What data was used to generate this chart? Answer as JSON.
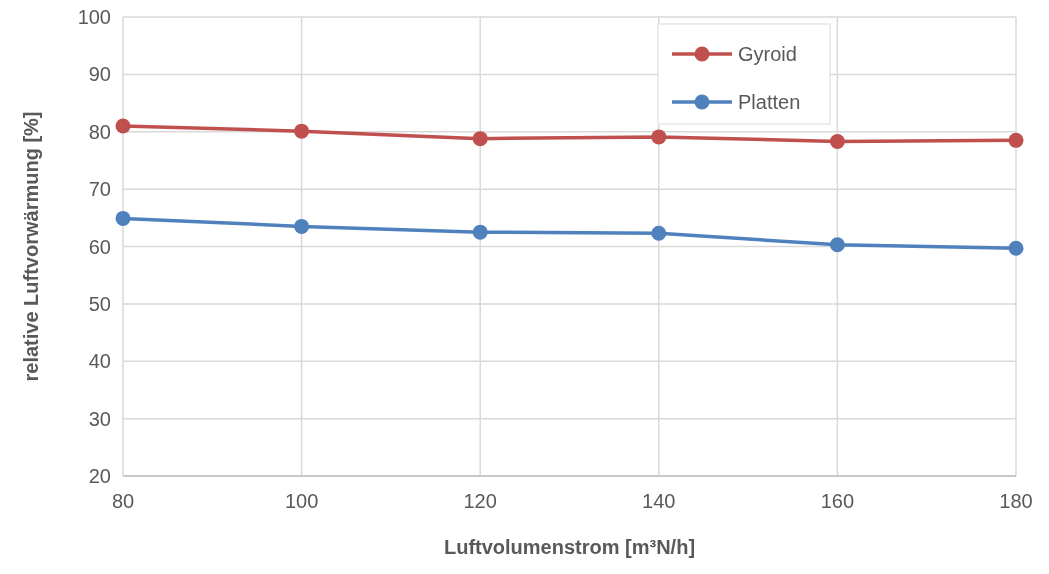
{
  "chart_data": {
    "type": "line",
    "xlabel": "Luftvolumenstrom [m³N/h]",
    "ylabel": "relative Luftvorwärmung [%]",
    "x": [
      80,
      100,
      120,
      140,
      160,
      180
    ],
    "series": [
      {
        "name": "Gyroid",
        "color": "#c0504d",
        "values": [
          81.0,
          80.1,
          78.8,
          79.1,
          78.3,
          78.5
        ]
      },
      {
        "name": "Platten",
        "color": "#4f81bd",
        "values": [
          64.9,
          63.5,
          62.5,
          62.3,
          60.3,
          59.7
        ]
      }
    ],
    "xlim": [
      80,
      180
    ],
    "xticks": [
      80,
      100,
      120,
      140,
      160,
      180
    ],
    "ylim": [
      20,
      100
    ],
    "yticks": [
      20,
      30,
      40,
      50,
      60,
      70,
      80,
      90,
      100
    ],
    "grid": true,
    "legend": "top right",
    "marker": "circle",
    "line_style": "solid"
  }
}
